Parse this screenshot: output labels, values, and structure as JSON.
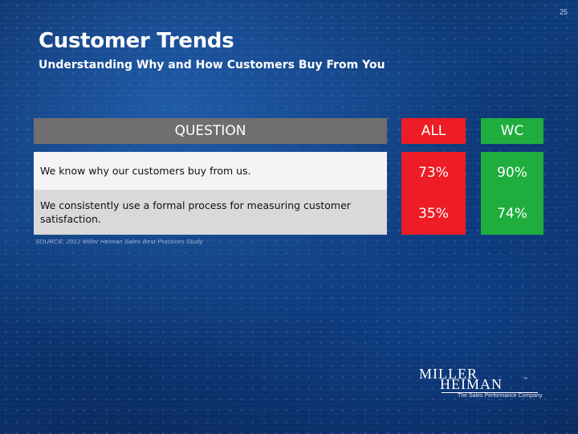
{
  "slide": {
    "number": "25",
    "title": "Customer Trends",
    "subtitle": "Understanding Why and How Customers Buy From You"
  },
  "table": {
    "headers": {
      "question": "QUESTION",
      "all": "ALL",
      "wc": "WC"
    },
    "rows": [
      {
        "question": "We know why our customers buy from us.",
        "all": "73%",
        "wc": "90%"
      },
      {
        "question": "We consistently use a formal process for measuring customer satisfaction.",
        "all": "35%",
        "wc": "74%"
      }
    ],
    "colors": {
      "all": "#ee1c24",
      "wc": "#1fae3e",
      "header": "#6f6f6f"
    }
  },
  "source": "SOURCE: 2012 Miller Heiman Sales Best Practices Study",
  "logo": {
    "line1": "MILLER",
    "line2": "HEIMAN",
    "trademark": "™",
    "tagline": "The Sales Performance Company"
  }
}
